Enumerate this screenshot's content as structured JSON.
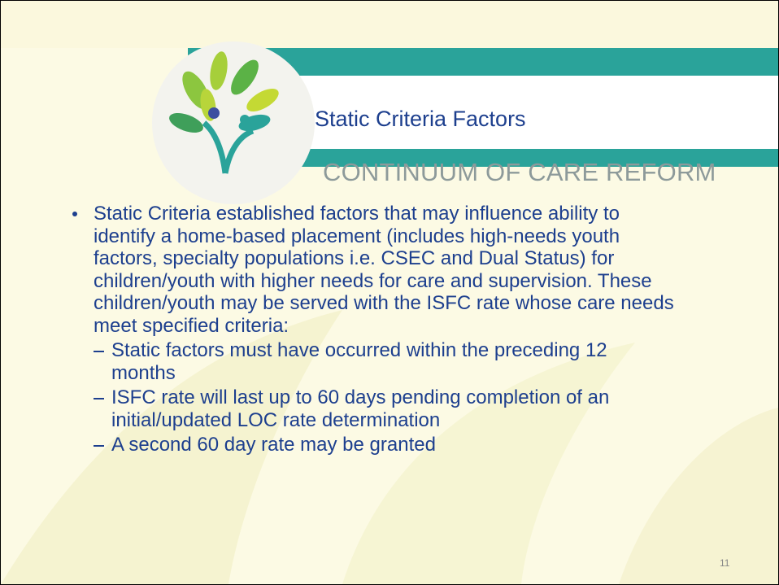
{
  "slide": {
    "title": "Static Criteria Factors",
    "subtitle": "CONTINUUM OF CARE REFORM",
    "bullet": "Static Criteria established factors that may influence ability to identify a home-based placement (includes high-needs youth factors, specialty populations i.e. CSEC and Dual Status) for children/youth with higher needs for care and supervision.  These children/youth may be served with the ISFC rate whose care needs meet specified criteria:",
    "sub_bullets": [
      "Static factors must have occurred within the preceding 12 months",
      "ISFC rate will last up to 60 days pending completion of an initial/updated LOC rate determination",
      "A second 60 day rate may be granted"
    ],
    "page_number": "11"
  }
}
